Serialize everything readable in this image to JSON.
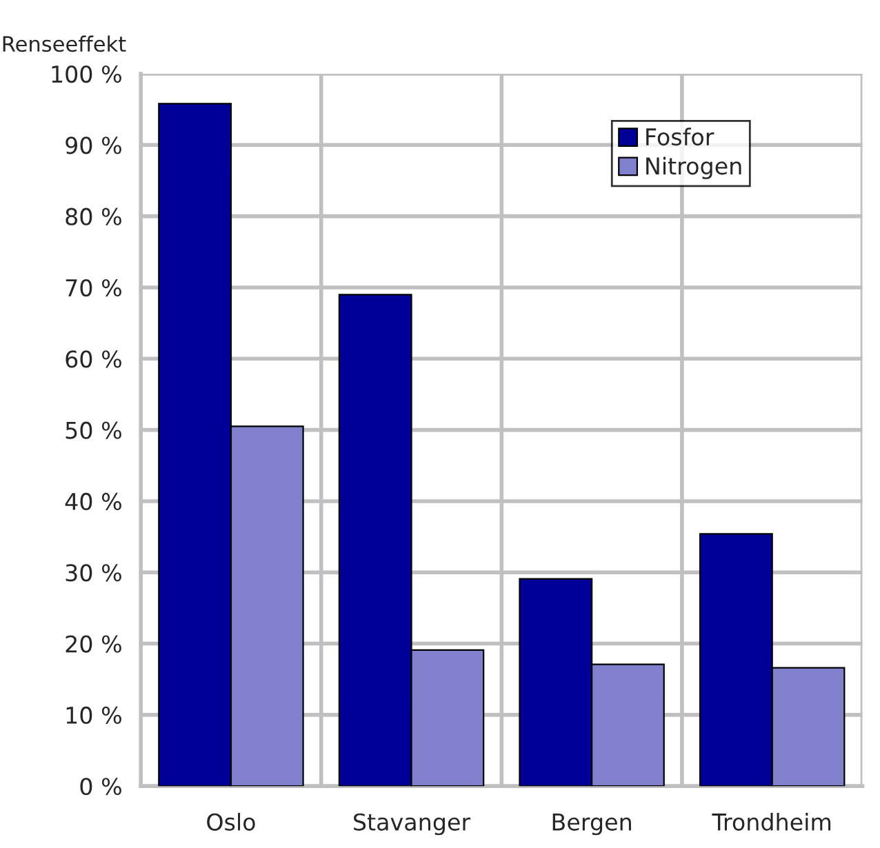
{
  "chart_data": {
    "type": "bar",
    "ylabel": "Renseeffekt",
    "categories": [
      "Oslo",
      "Stavanger",
      "Bergen",
      "Trondheim"
    ],
    "series": [
      {
        "name": "Fosfor",
        "color": "#000099",
        "values": [
          95.8,
          69.0,
          29.1,
          35.4
        ]
      },
      {
        "name": "Nitrogen",
        "color": "#8080cc",
        "values": [
          50.5,
          19.1,
          17.1,
          16.6
        ]
      }
    ],
    "ylim": [
      0,
      100
    ],
    "yticks": [
      {
        "value": 0,
        "label": "0 %"
      },
      {
        "value": 10,
        "label": "10 %"
      },
      {
        "value": 20,
        "label": "20 %"
      },
      {
        "value": 30,
        "label": "30 %"
      },
      {
        "value": 40,
        "label": "40 %"
      },
      {
        "value": 50,
        "label": "50 %"
      },
      {
        "value": 60,
        "label": "60 %"
      },
      {
        "value": 70,
        "label": "70 %"
      },
      {
        "value": 80,
        "label": "80 %"
      },
      {
        "value": 90,
        "label": "90 %"
      },
      {
        "value": 100,
        "label": "100 %"
      }
    ],
    "grid": true,
    "legend": "top right"
  }
}
